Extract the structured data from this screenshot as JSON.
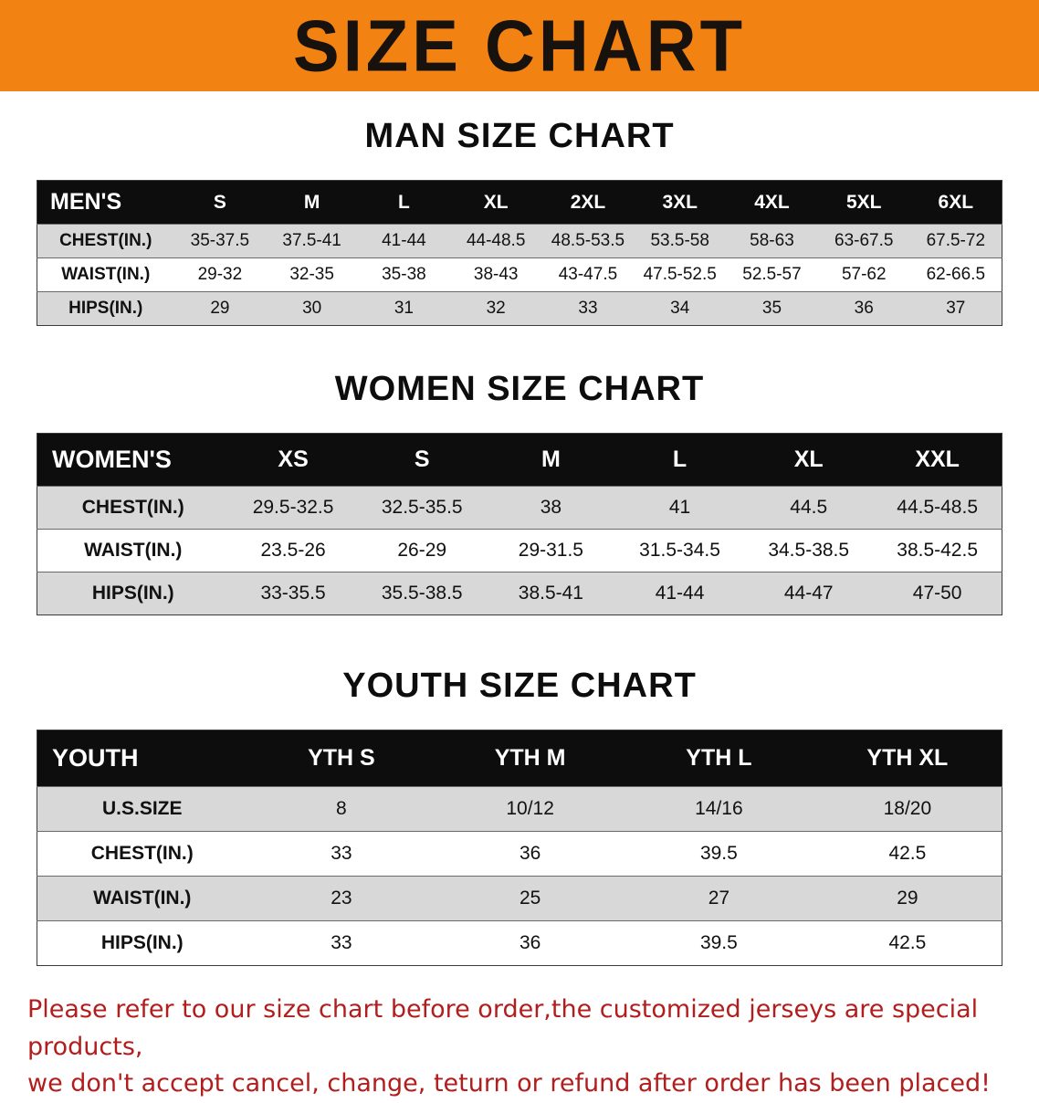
{
  "banner": {
    "title": "SIZE CHART",
    "bg_color": "#F28211",
    "text_color": "#17120d"
  },
  "men": {
    "heading": "MAN SIZE CHART",
    "label": "MEN'S",
    "sizes": [
      "S",
      "M",
      "L",
      "XL",
      "2XL",
      "3XL",
      "4XL",
      "5XL",
      "6XL"
    ],
    "rows": [
      {
        "label": "CHEST(IN.)",
        "values": [
          "35-37.5",
          "37.5-41",
          "41-44",
          "44-48.5",
          "48.5-53.5",
          "53.5-58",
          "58-63",
          "63-67.5",
          "67.5-72"
        ]
      },
      {
        "label": "WAIST(IN.)",
        "values": [
          "29-32",
          "32-35",
          "35-38",
          "38-43",
          "43-47.5",
          "47.5-52.5",
          "52.5-57",
          "57-62",
          "62-66.5"
        ]
      },
      {
        "label": "HIPS(IN.)",
        "values": [
          "29",
          "30",
          "31",
          "32",
          "33",
          "34",
          "35",
          "36",
          "37"
        ]
      }
    ]
  },
  "women": {
    "heading": "WOMEN SIZE CHART",
    "label": "WOMEN'S",
    "sizes": [
      "XS",
      "S",
      "M",
      "L",
      "XL",
      "XXL"
    ],
    "rows": [
      {
        "label": "CHEST(IN.)",
        "values": [
          "29.5-32.5",
          "32.5-35.5",
          "38",
          "41",
          "44.5",
          "44.5-48.5"
        ]
      },
      {
        "label": "WAIST(IN.)",
        "values": [
          "23.5-26",
          "26-29",
          "29-31.5",
          "31.5-34.5",
          "34.5-38.5",
          "38.5-42.5"
        ]
      },
      {
        "label": "HIPS(IN.)",
        "values": [
          "33-35.5",
          "35.5-38.5",
          "38.5-41",
          "41-44",
          "44-47",
          "47-50"
        ]
      }
    ]
  },
  "youth": {
    "heading": "YOUTH SIZE CHART",
    "label": "YOUTH",
    "sizes": [
      "YTH S",
      "YTH M",
      "YTH L",
      "YTH XL"
    ],
    "rows": [
      {
        "label": "U.S.SIZE",
        "values": [
          "8",
          "10/12",
          "14/16",
          "18/20"
        ]
      },
      {
        "label": "CHEST(IN.)",
        "values": [
          "33",
          "36",
          "39.5",
          "42.5"
        ]
      },
      {
        "label": "WAIST(IN.)",
        "values": [
          "23",
          "25",
          "27",
          "29"
        ]
      },
      {
        "label": "HIPS(IN.)",
        "values": [
          "33",
          "36",
          "39.5",
          "42.5"
        ]
      }
    ]
  },
  "footnote": {
    "line1": "Please refer to our size chart before order,the customized jerseys are special products,",
    "line2": "we don't accept cancel, change, teturn or refund after order has been placed!",
    "color": "#b21d1d"
  }
}
